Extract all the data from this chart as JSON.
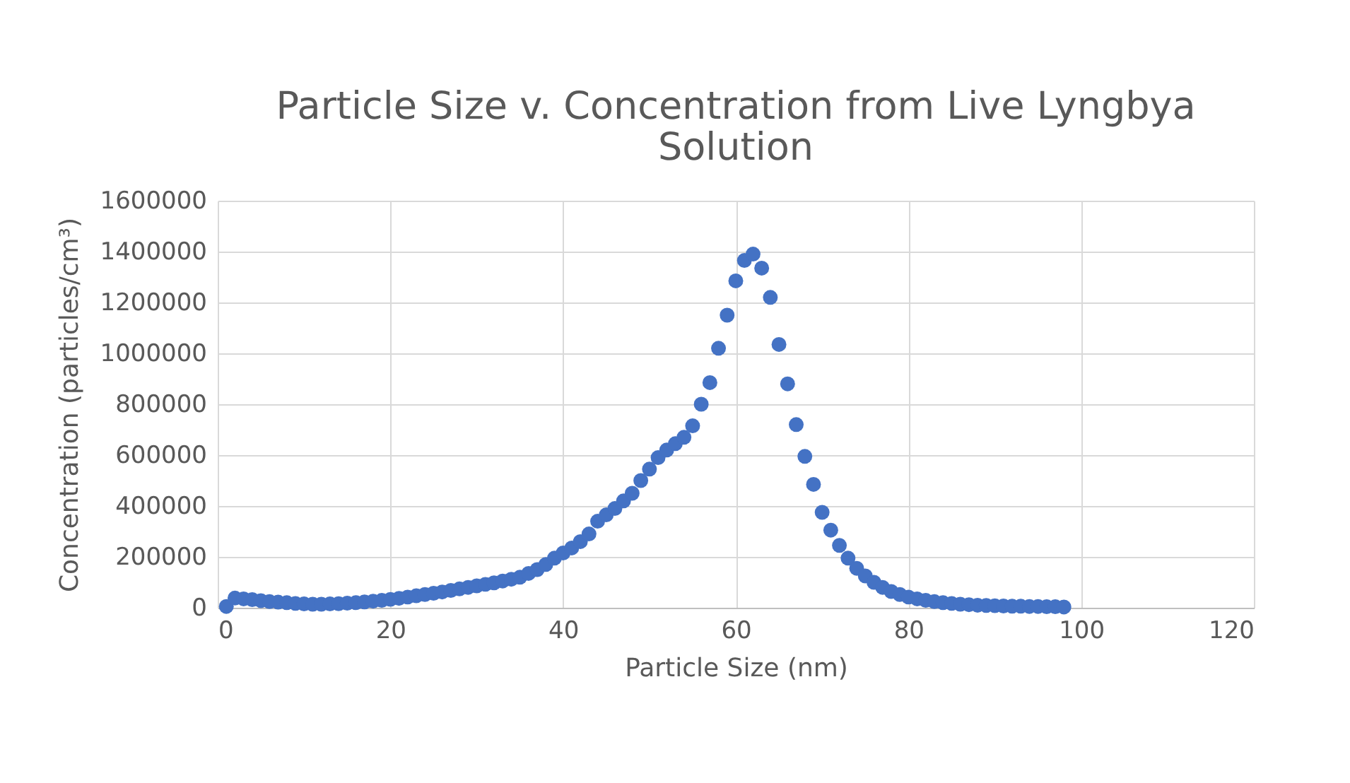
{
  "chart_data": {
    "type": "scatter",
    "title": "Particle Size v. Concentration from Live Lyngbya Solution",
    "xlabel": "Particle Size (nm)",
    "ylabel": "Concentration (particles/cm³)",
    "x": [
      1,
      2,
      3,
      4,
      5,
      6,
      7,
      8,
      9,
      10,
      11,
      12,
      13,
      14,
      15,
      16,
      17,
      18,
      19,
      20,
      21,
      22,
      23,
      24,
      25,
      26,
      27,
      28,
      29,
      30,
      31,
      32,
      33,
      34,
      35,
      36,
      37,
      38,
      39,
      40,
      41,
      42,
      43,
      44,
      45,
      46,
      47,
      48,
      49,
      50,
      51,
      52,
      53,
      54,
      55,
      56,
      57,
      58,
      59,
      60,
      61,
      62,
      63,
      64,
      65,
      66,
      67,
      68,
      69,
      70,
      71,
      72,
      73,
      74,
      75,
      76,
      77,
      78,
      79,
      80,
      81,
      82,
      83,
      84,
      85,
      86,
      87,
      88,
      89,
      90,
      91,
      92,
      93,
      94,
      95,
      96,
      97,
      98
    ],
    "series": [
      {
        "color": "#4472c4",
        "values": [
          5000,
          38000,
          35000,
          32000,
          28000,
          24000,
          22000,
          20000,
          17000,
          15000,
          14000,
          14000,
          15000,
          16000,
          18000,
          20000,
          23000,
          26000,
          29000,
          33000,
          37000,
          42000,
          47000,
          52000,
          57000,
          62000,
          68000,
          74000,
          80000,
          86000,
          92000,
          98000,
          105000,
          112000,
          120000,
          135000,
          150000,
          170000,
          195000,
          215000,
          235000,
          260000,
          290000,
          340000,
          365000,
          390000,
          420000,
          450000,
          500000,
          545000,
          590000,
          620000,
          645000,
          670000,
          715000,
          800000,
          885000,
          1020000,
          1150000,
          1285000,
          1365000,
          1390000,
          1335000,
          1220000,
          1035000,
          880000,
          720000,
          595000,
          485000,
          375000,
          305000,
          245000,
          195000,
          155000,
          125000,
          100000,
          80000,
          64000,
          52000,
          42000,
          35000,
          29000,
          24000,
          20000,
          17000,
          14000,
          12000,
          10000,
          9000,
          8000,
          7000,
          6000,
          6000,
          5000,
          5000,
          4000,
          4000,
          3000
        ]
      }
    ],
    "xlim": [
      0,
      120
    ],
    "xticks": [
      0,
      20,
      40,
      60,
      80,
      100,
      120
    ],
    "ylim": [
      0,
      1600000
    ],
    "yticks": [
      0,
      200000,
      400000,
      600000,
      800000,
      1000000,
      1200000,
      1400000,
      1600000
    ],
    "grid": true,
    "marker": "circle",
    "legend": false
  }
}
